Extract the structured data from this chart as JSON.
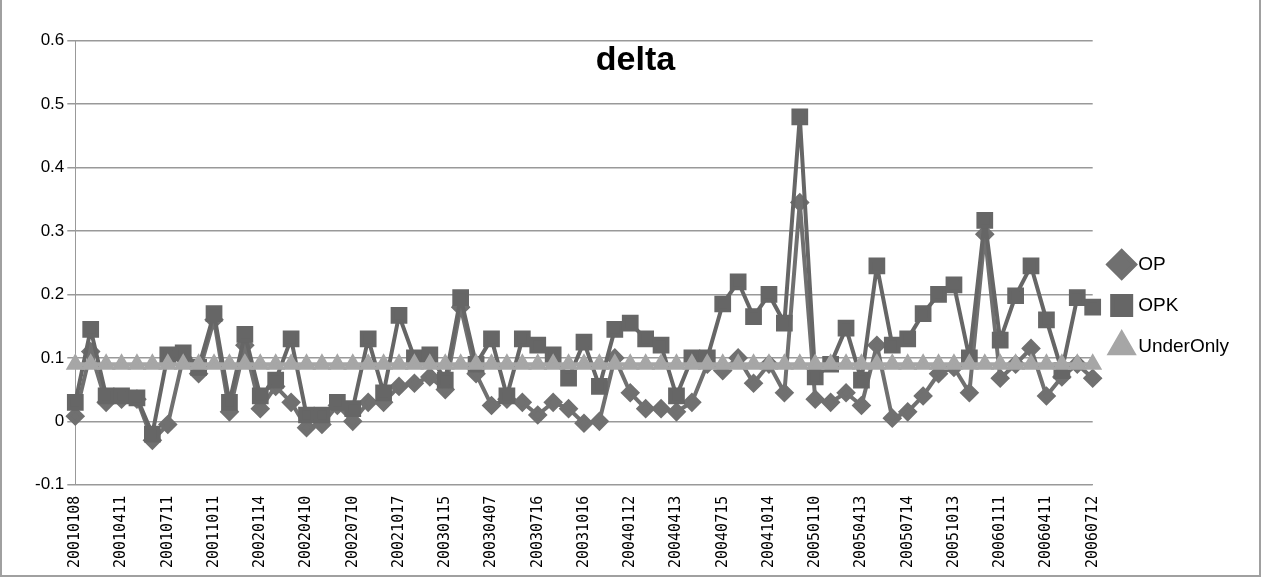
{
  "chart_data": {
    "type": "line",
    "title": "delta",
    "categories": [
      "20010108",
      null,
      null,
      "20010411",
      null,
      null,
      "20010711",
      null,
      null,
      "20011011",
      null,
      null,
      "20020114",
      null,
      null,
      "20020410",
      null,
      null,
      "20020710",
      null,
      null,
      "20021017",
      null,
      null,
      "20030115",
      null,
      null,
      "20030407",
      null,
      null,
      "20030716",
      null,
      null,
      "20031016",
      null,
      null,
      "20040112",
      null,
      null,
      "20040413",
      null,
      null,
      "20040715",
      null,
      null,
      "20041014",
      null,
      null,
      "20050110",
      null,
      null,
      "20050413",
      null,
      null,
      "20050714",
      null,
      null,
      "20051013",
      null,
      null,
      "20060111",
      null,
      null,
      "20060411",
      null,
      null,
      "20060712"
    ],
    "series": [
      {
        "name": "OP",
        "color": "#707070",
        "marker": "diamond",
        "values": [
          0.008,
          0.11,
          0.03,
          0.035,
          0.035,
          -0.03,
          -0.005,
          0.1,
          0.075,
          0.16,
          0.015,
          0.12,
          0.02,
          0.055,
          0.03,
          -0.01,
          -0.005,
          0.025,
          0.0,
          0.03,
          0.03,
          0.055,
          0.06,
          0.07,
          0.05,
          0.18,
          0.075,
          0.025,
          0.035,
          0.03,
          0.01,
          0.03,
          0.02,
          -0.003,
          0.0,
          0.1,
          0.045,
          0.02,
          0.02,
          0.015,
          0.03,
          0.09,
          0.08,
          0.1,
          0.06,
          0.09,
          0.045,
          0.345,
          0.035,
          0.03,
          0.045,
          0.025,
          0.12,
          0.005,
          0.015,
          0.04,
          0.075,
          0.085,
          0.045,
          0.295,
          0.068,
          0.09,
          0.115,
          0.04,
          0.07,
          0.09,
          0.068
        ]
      },
      {
        "name": "OPK",
        "color": "#666666",
        "marker": "square",
        "values": [
          0.03,
          0.145,
          0.04,
          0.04,
          0.037,
          -0.02,
          0.105,
          0.108,
          0.085,
          0.17,
          0.03,
          0.137,
          0.04,
          0.065,
          0.13,
          0.01,
          0.01,
          0.03,
          0.02,
          0.13,
          0.045,
          0.167,
          0.1,
          0.105,
          0.065,
          0.195,
          0.09,
          0.13,
          0.04,
          0.13,
          0.12,
          0.105,
          0.068,
          0.125,
          0.055,
          0.145,
          0.155,
          0.13,
          0.12,
          0.04,
          0.1,
          0.1,
          0.185,
          0.22,
          0.165,
          0.2,
          0.155,
          0.48,
          0.07,
          0.09,
          0.147,
          0.065,
          0.245,
          0.12,
          0.13,
          0.17,
          0.2,
          0.215,
          0.1,
          0.317,
          0.128,
          0.198,
          0.245,
          0.16,
          0.08,
          0.195,
          0.18
        ]
      },
      {
        "name": "UnderOnly",
        "color": "#a6a6a6",
        "marker": "triangle",
        "values": [
          0.09,
          0.09,
          0.09,
          0.09,
          0.09,
          0.09,
          0.09,
          0.09,
          0.09,
          0.09,
          0.09,
          0.09,
          0.09,
          0.09,
          0.09,
          0.09,
          0.09,
          0.09,
          0.09,
          0.09,
          0.09,
          0.09,
          0.09,
          0.09,
          0.09,
          0.09,
          0.09,
          0.09,
          0.09,
          0.09,
          0.09,
          0.09,
          0.09,
          0.09,
          0.09,
          0.09,
          0.09,
          0.09,
          0.09,
          0.09,
          0.09,
          0.09,
          0.09,
          0.09,
          0.09,
          0.09,
          0.09,
          0.09,
          0.09,
          0.09,
          0.09,
          0.09,
          0.09,
          0.09,
          0.09,
          0.09,
          0.09,
          0.09,
          0.09,
          0.09,
          0.09,
          0.09,
          0.09,
          0.09,
          0.09,
          0.09,
          0.09
        ]
      }
    ],
    "ylim": [
      -0.1,
      0.6
    ],
    "yticks": [
      -0.1,
      0,
      0.1,
      0.2,
      0.3,
      0.4,
      0.5,
      0.6
    ],
    "grid": "y",
    "legend": "right",
    "line_style": "solid"
  }
}
